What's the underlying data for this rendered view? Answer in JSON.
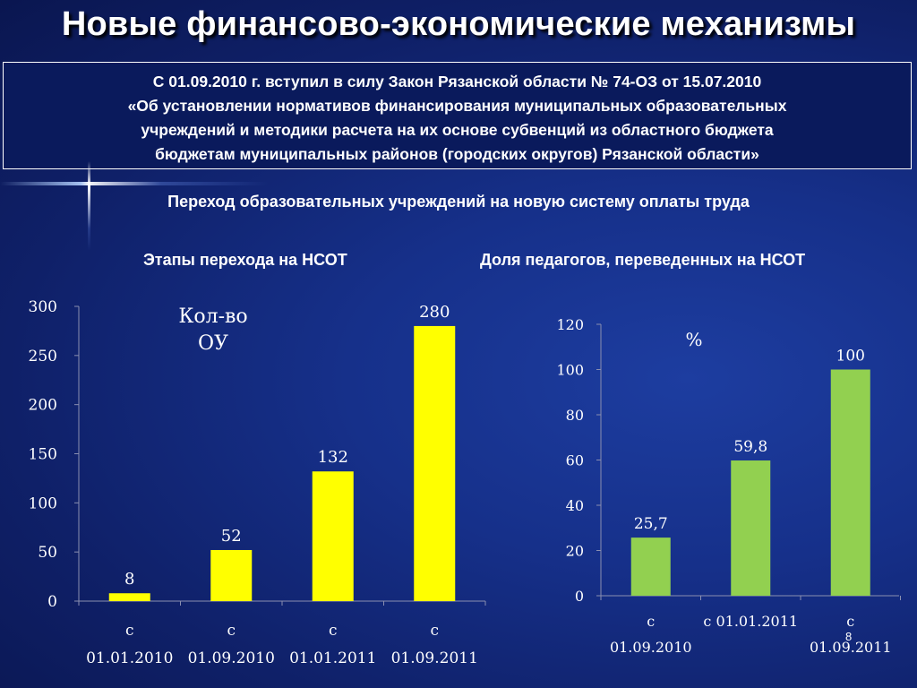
{
  "slide": {
    "title": "Новые финансово-экономические механизмы",
    "law_lines": [
      "С 01.09.2010 г. вступил в силу Закон Рязанской области № 74-ОЗ от 15.07.2010",
      "«Об установлении нормативов финансирования муниципальных образовательных",
      "учреждений и методики расчета на их основе субвенций из областного бюджета",
      "бюджетам муниципальных районов (городских округов) Рязанской области»"
    ],
    "subheading": "Переход образовательных учреждений на новую систему оплаты труда",
    "page_number": "8"
  },
  "colors": {
    "bar1": "#ffff00",
    "bar2": "#92d050",
    "background": "#14308a"
  },
  "chart_data": [
    {
      "type": "bar",
      "title": "Этапы перехода на НСОТ",
      "ylabel": "Кол-во ОУ",
      "ylabel_lines": [
        "Кол-во",
        "ОУ"
      ],
      "categories": [
        "с 01.01.2010",
        "с 01.09.2010",
        "с 01.01.2011",
        "с 01.09.2011"
      ],
      "category_lines": [
        [
          "с",
          "01.01.2010"
        ],
        [
          "с",
          "01.09.2010"
        ],
        [
          "с",
          "01.01.2011"
        ],
        [
          "с",
          "01.09.2011"
        ]
      ],
      "values": [
        8,
        52,
        132,
        280
      ],
      "value_labels": [
        "8",
        "52",
        "132",
        "280"
      ],
      "ylim": [
        0,
        300
      ],
      "yticks": [
        "0",
        "50",
        "100",
        "150",
        "200",
        "250",
        "300"
      ],
      "grid": false
    },
    {
      "type": "bar",
      "title": "Доля педагогов, переведенных на НСОТ",
      "ylabel": "%",
      "ylabel_lines": [
        "%"
      ],
      "categories": [
        "с 01.09.2010",
        "с 01.01.2011",
        "с 01.09.2011"
      ],
      "category_lines": [
        [
          "с",
          "01.09.2010"
        ],
        [
          "с 01.01.2011"
        ],
        [
          "с",
          "01.09.2011"
        ]
      ],
      "values": [
        25.7,
        59.8,
        100
      ],
      "value_labels": [
        "25,7",
        "59,8",
        "100"
      ],
      "ylim": [
        0,
        120
      ],
      "yticks": [
        "0",
        "20",
        "40",
        "60",
        "80",
        "100",
        "120"
      ],
      "grid": false
    }
  ]
}
